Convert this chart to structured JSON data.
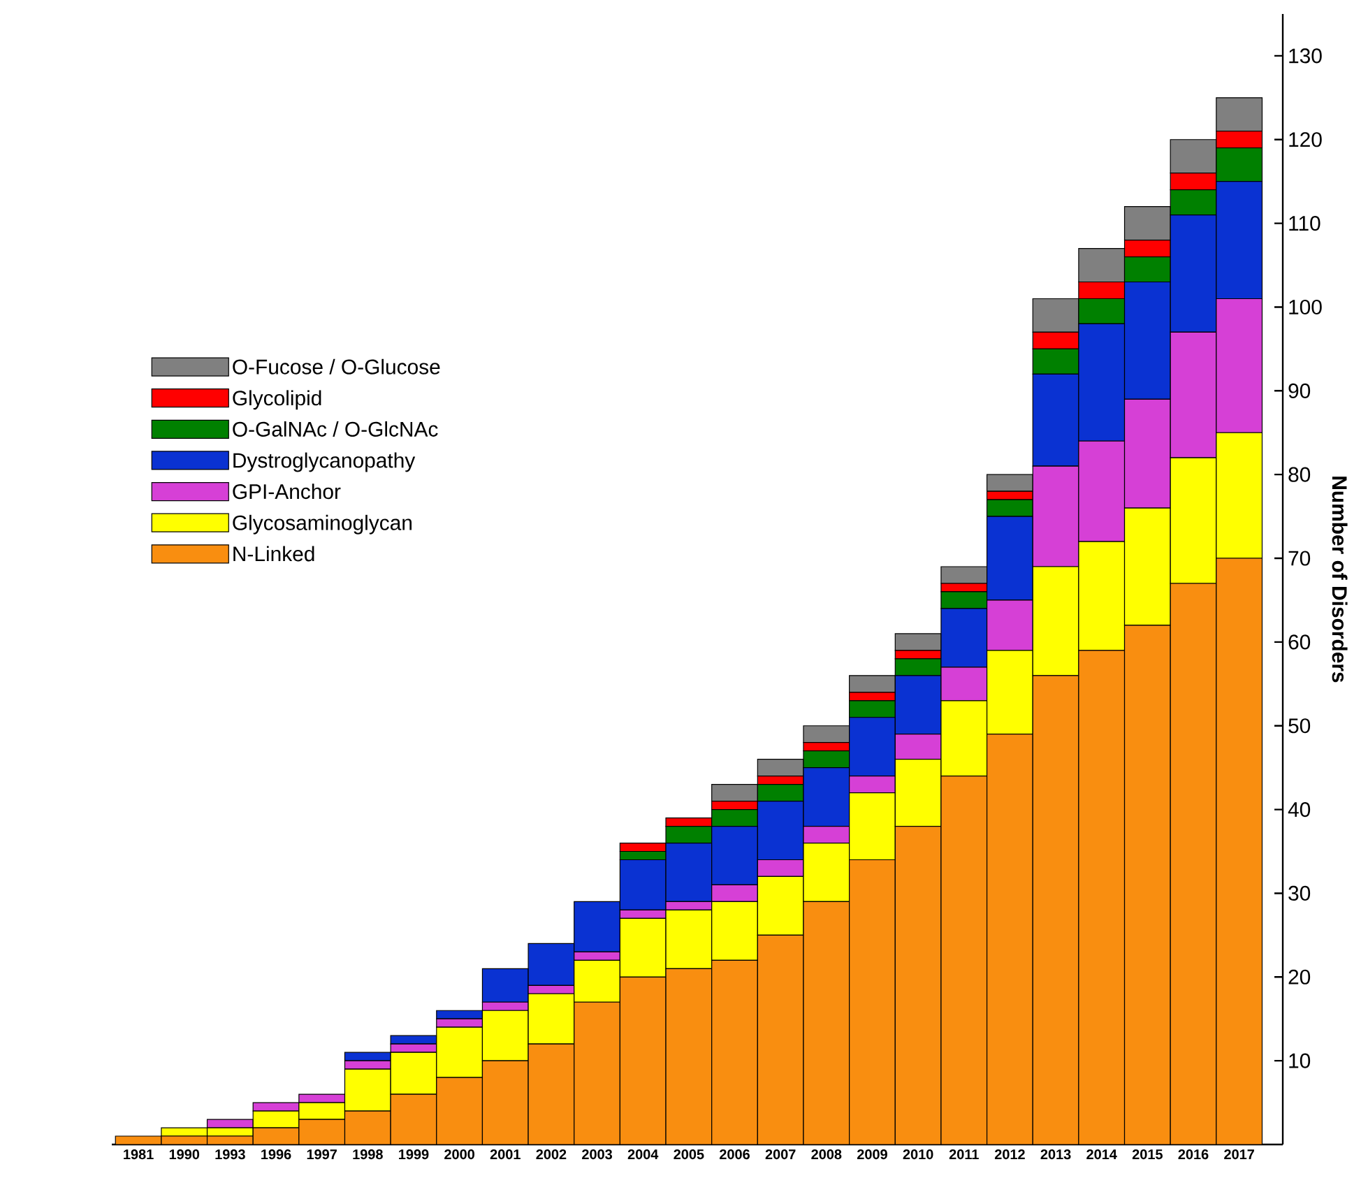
{
  "chart_data": {
    "type": "bar",
    "stacked": true,
    "ylabel": "Number of Disorders",
    "categories": [
      "1981",
      "1990",
      "1993",
      "1996",
      "1997",
      "1998",
      "1999",
      "2000",
      "2001",
      "2002",
      "2003",
      "2004",
      "2005",
      "2006",
      "2007",
      "2008",
      "2009",
      "2010",
      "2011",
      "2012",
      "2013",
      "2014",
      "2015",
      "2016",
      "2017"
    ],
    "series": [
      {
        "name": "N-Linked",
        "color": "#f98e10",
        "values": [
          1,
          1,
          1,
          2,
          3,
          4,
          6,
          8,
          10,
          12,
          17,
          20,
          21,
          22,
          25,
          29,
          34,
          38,
          44,
          49,
          56,
          59,
          62,
          67,
          70
        ]
      },
      {
        "name": "Glycosaminoglycan",
        "color": "#ffff00",
        "values": [
          0,
          1,
          1,
          2,
          2,
          5,
          5,
          6,
          6,
          6,
          5,
          7,
          7,
          7,
          7,
          7,
          8,
          8,
          9,
          10,
          13,
          13,
          14,
          15,
          15
        ]
      },
      {
        "name": "GPI-Anchor",
        "color": "#d640d6",
        "values": [
          0,
          0,
          1,
          1,
          1,
          1,
          1,
          1,
          1,
          1,
          1,
          1,
          1,
          2,
          2,
          2,
          2,
          3,
          4,
          6,
          12,
          12,
          13,
          15,
          16
        ]
      },
      {
        "name": "Dystroglycanopathy",
        "color": "#0a32d2",
        "values": [
          0,
          0,
          0,
          0,
          0,
          1,
          1,
          1,
          4,
          5,
          6,
          6,
          7,
          7,
          7,
          7,
          7,
          7,
          7,
          10,
          11,
          14,
          14,
          14,
          14
        ]
      },
      {
        "name": "O-GalNAc / O-GlcNAc",
        "color": "#008000",
        "values": [
          0,
          0,
          0,
          0,
          0,
          0,
          0,
          0,
          0,
          0,
          0,
          1,
          2,
          2,
          2,
          2,
          2,
          2,
          2,
          2,
          3,
          3,
          3,
          3,
          4
        ]
      },
      {
        "name": "Glycolipid",
        "color": "#ff0000",
        "values": [
          0,
          0,
          0,
          0,
          0,
          0,
          0,
          0,
          0,
          0,
          0,
          1,
          1,
          1,
          1,
          1,
          1,
          1,
          1,
          1,
          2,
          2,
          2,
          2,
          2
        ]
      },
      {
        "name": "O-Fucose / O-Glucose",
        "color": "#808080",
        "values": [
          0,
          0,
          0,
          0,
          0,
          0,
          0,
          0,
          0,
          0,
          0,
          0,
          0,
          2,
          2,
          2,
          2,
          2,
          2,
          2,
          4,
          4,
          4,
          4,
          4
        ]
      }
    ],
    "ylim": [
      0,
      135
    ],
    "yticks": [
      10,
      20,
      30,
      40,
      50,
      60,
      70,
      80,
      90,
      100,
      110,
      120,
      130
    ],
    "legend": "top left"
  }
}
